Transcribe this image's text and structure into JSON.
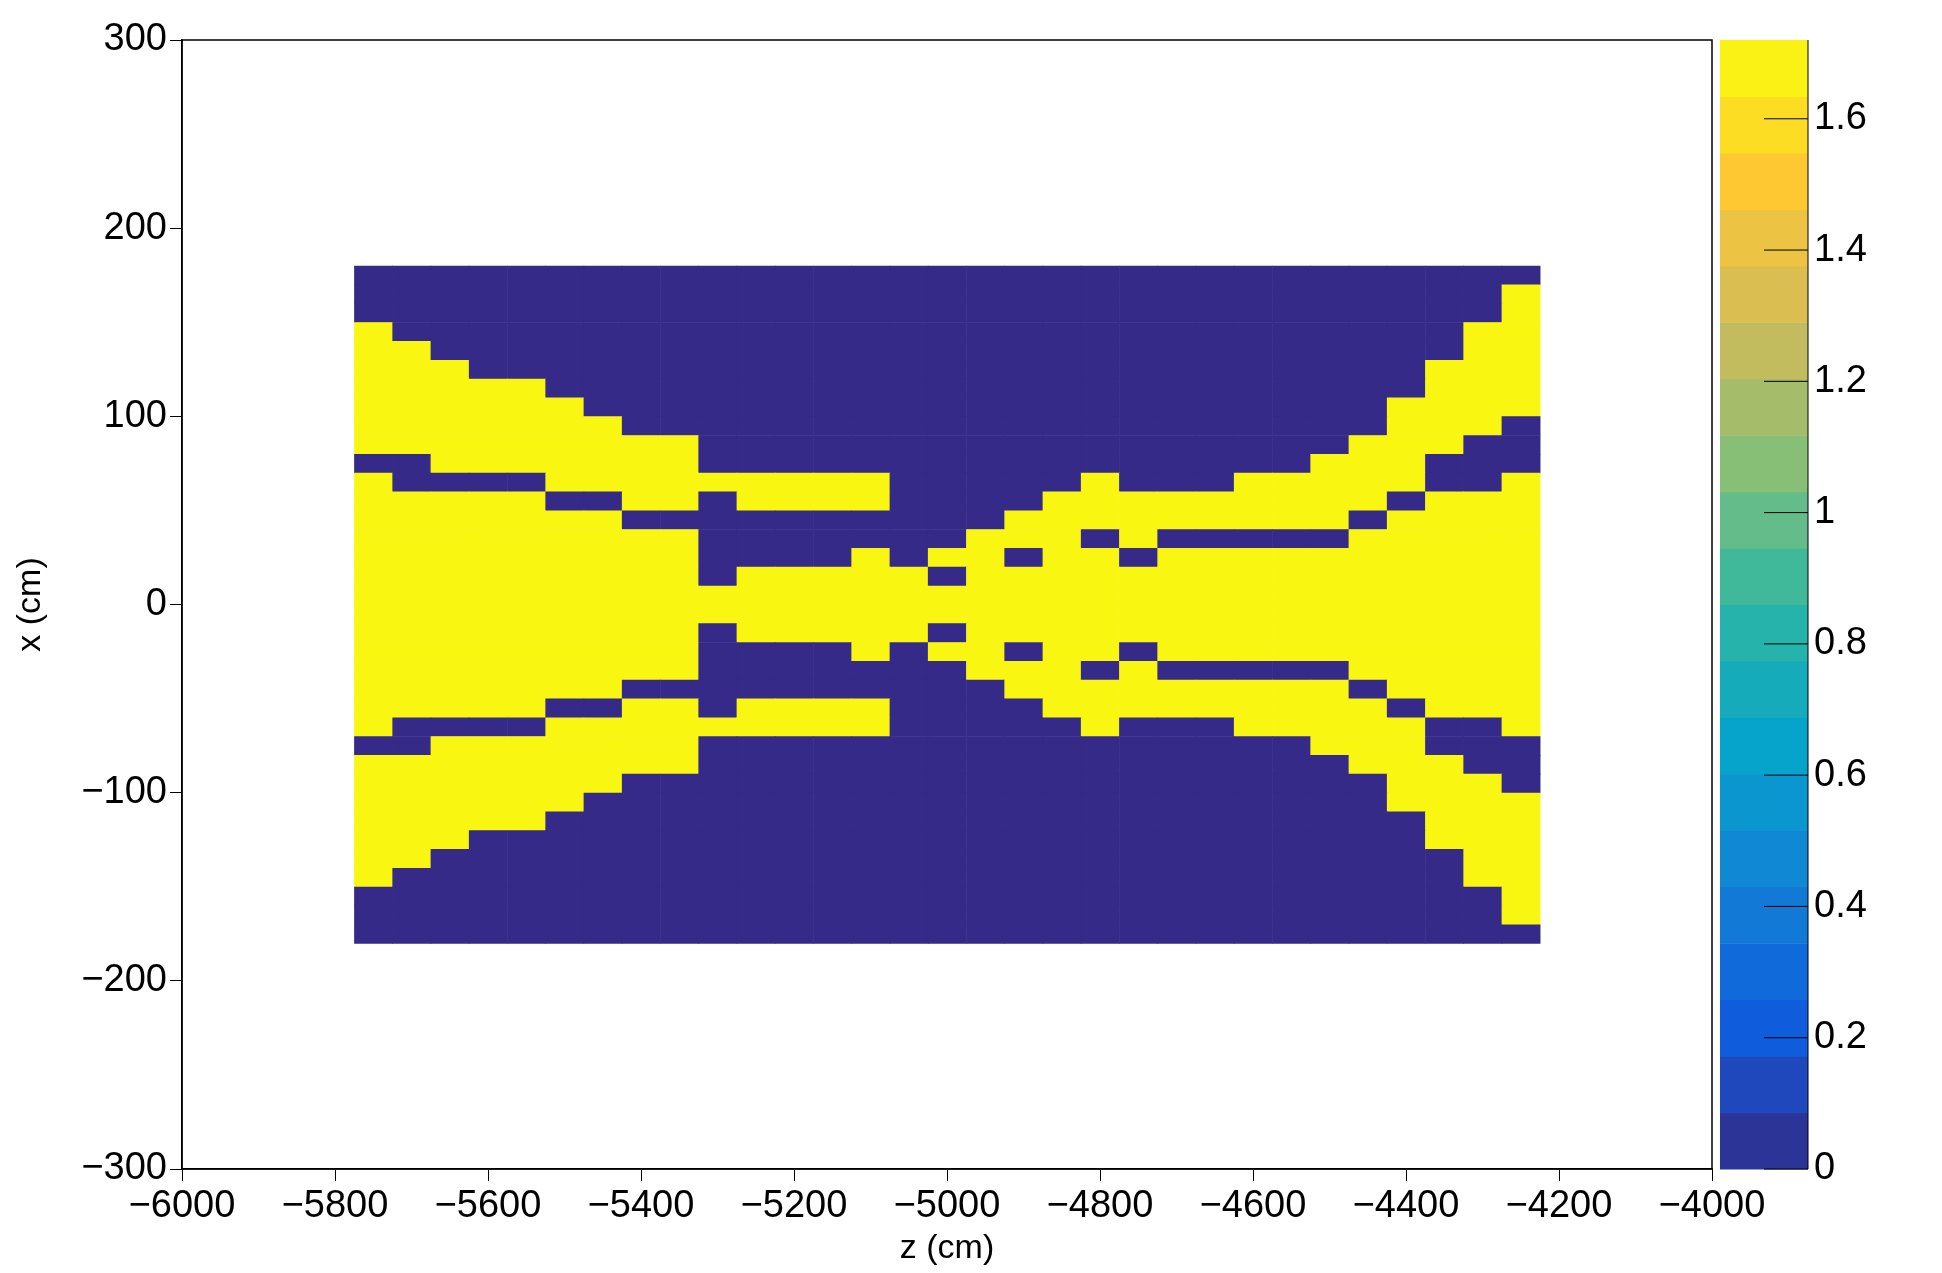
{
  "chart_data": {
    "type": "heatmap",
    "xlabel": "z (cm)",
    "ylabel": "x (cm)",
    "xlim": [
      -6000,
      -4000
    ],
    "xticks": [
      -6000,
      -5800,
      -5600,
      -5400,
      -5200,
      -5000,
      -4800,
      -4600,
      -4400,
      -4200,
      -4000
    ],
    "ylim": [
      -300,
      300
    ],
    "yticks": [
      -300,
      -200,
      -100,
      0,
      100,
      200,
      300
    ],
    "clim": [
      0,
      1.72
    ],
    "cticks": [
      0,
      0.2,
      0.4,
      0.6,
      0.8,
      1,
      1.2,
      1.4,
      1.6
    ],
    "x": [
      -5750,
      -5700,
      -5650,
      -5600,
      -5550,
      -5500,
      -5450,
      -5400,
      -5350,
      -5300,
      -5250,
      -5200,
      -5150,
      -5100,
      -5050,
      -5000,
      -4950,
      -4900,
      -4850,
      -4800,
      -4750,
      -4700,
      -4650,
      -4600,
      -4550,
      -4500,
      -4450,
      -4400,
      -4350,
      -4300,
      -4250
    ],
    "y": [
      175,
      165,
      155,
      145,
      135,
      125,
      115,
      105,
      95,
      85,
      75,
      65,
      55,
      45,
      35,
      25,
      15,
      5,
      -5,
      -15,
      -25,
      -35,
      -45,
      -55,
      -65,
      -75,
      -85,
      -95,
      -105,
      -115,
      -125,
      -135,
      -145,
      -155,
      -165,
      -175
    ],
    "cells": [
      [
        0,
        0,
        0,
        0,
        0,
        0,
        0,
        0,
        0,
        0,
        0,
        0,
        0,
        0,
        0,
        0,
        0,
        0,
        0,
        0,
        0,
        0,
        0,
        0,
        0,
        0,
        0,
        0,
        0,
        0,
        0
      ],
      [
        0,
        0,
        0,
        0,
        0,
        0,
        0,
        0,
        0,
        0,
        0,
        0,
        0,
        0,
        0,
        0,
        0,
        0,
        0,
        0,
        0,
        0,
        0,
        0,
        0,
        0,
        0,
        0,
        0,
        0,
        1.7
      ],
      [
        0,
        0,
        0,
        0,
        0,
        0,
        0,
        0,
        0,
        0,
        0,
        0,
        0,
        0,
        0,
        0,
        0,
        0,
        0,
        0,
        0,
        0,
        0,
        0,
        0,
        0,
        0,
        0,
        0,
        0,
        1.7
      ],
      [
        1.7,
        0,
        0,
        0,
        0,
        0,
        0,
        0,
        0,
        0,
        0,
        0,
        0,
        0,
        0,
        0,
        0,
        0,
        0,
        0,
        0,
        0,
        0,
        0,
        0,
        0,
        0,
        0,
        0,
        1.7,
        1.7
      ],
      [
        1.7,
        1.7,
        0,
        0,
        0,
        0,
        0,
        0,
        0,
        0,
        0,
        0,
        0,
        0,
        0,
        0,
        0,
        0,
        0,
        0,
        0,
        0,
        0,
        0,
        0,
        0,
        0,
        0,
        0,
        1.7,
        1.7
      ],
      [
        1.7,
        1.7,
        1.7,
        0,
        0,
        0,
        0,
        0,
        0,
        0,
        0,
        0,
        0,
        0,
        0,
        0,
        0,
        0,
        0,
        0,
        0,
        0,
        0,
        0,
        0,
        0,
        0,
        0,
        1.7,
        1.7,
        1.7
      ],
      [
        1.7,
        1.7,
        1.7,
        1.7,
        1.7,
        0,
        0,
        0,
        0,
        0,
        0,
        0,
        0,
        0,
        0,
        0,
        0,
        0,
        0,
        0,
        0,
        0,
        0,
        0,
        0,
        0,
        0,
        0,
        1.7,
        1.7,
        1.7
      ],
      [
        1.7,
        1.7,
        1.7,
        1.7,
        1.7,
        1.7,
        0,
        0,
        0,
        0,
        0,
        0,
        0,
        0,
        0,
        0,
        0,
        0,
        0,
        0,
        0,
        0,
        0,
        0,
        0,
        0,
        0,
        1.7,
        1.7,
        1.7,
        1.7
      ],
      [
        1.7,
        1.7,
        1.7,
        1.7,
        1.7,
        1.7,
        1.7,
        0,
        0,
        0,
        0,
        0,
        0,
        0,
        0,
        0,
        0,
        0,
        0,
        0,
        0,
        0,
        0,
        0,
        0,
        0,
        0,
        1.7,
        1.7,
        1.7,
        0
      ],
      [
        1.7,
        1.7,
        1.7,
        1.7,
        1.7,
        1.7,
        1.7,
        1.7,
        1.7,
        0,
        0,
        0,
        0,
        0,
        0,
        0,
        0,
        0,
        0,
        0,
        0,
        0,
        0,
        0,
        0,
        0,
        1.7,
        1.7,
        1.7,
        0,
        0
      ],
      [
        0,
        0,
        1.7,
        1.7,
        1.7,
        1.7,
        1.7,
        1.7,
        1.7,
        0,
        0,
        0,
        0,
        0,
        0,
        0,
        0,
        0,
        0,
        0,
        0,
        0,
        0,
        0,
        0,
        1.7,
        1.7,
        1.7,
        0,
        0,
        0
      ],
      [
        1.7,
        0,
        0,
        0,
        0,
        1.7,
        1.7,
        1.7,
        1.7,
        1.7,
        1.7,
        1.7,
        1.7,
        1.7,
        0,
        0,
        0,
        0,
        0,
        1.7,
        0,
        0,
        0,
        1.7,
        1.7,
        1.7,
        1.7,
        1.7,
        0,
        0,
        1.7
      ],
      [
        1.7,
        1.7,
        1.7,
        1.7,
        1.7,
        0,
        0,
        1.7,
        1.7,
        0,
        1.7,
        1.7,
        1.7,
        1.7,
        0,
        0,
        0,
        0,
        1.7,
        1.7,
        1.7,
        1.7,
        1.7,
        1.7,
        1.7,
        1.7,
        1.7,
        0,
        1.7,
        1.7,
        1.7
      ],
      [
        1.7,
        1.7,
        1.7,
        1.7,
        1.7,
        1.7,
        1.7,
        0,
        0,
        0,
        0,
        0,
        0,
        0,
        0,
        0,
        0,
        1.7,
        1.7,
        1.7,
        1.7,
        1.7,
        1.7,
        1.7,
        1.7,
        1.7,
        0,
        1.7,
        1.7,
        1.7,
        1.7
      ],
      [
        1.7,
        1.7,
        1.7,
        1.7,
        1.7,
        1.7,
        1.7,
        1.7,
        1.7,
        0,
        0,
        0,
        0,
        0,
        0,
        0,
        1.7,
        1.7,
        1.7,
        0,
        1.7,
        0,
        0,
        0,
        0,
        0,
        1.7,
        1.7,
        1.7,
        1.7,
        1.7
      ],
      [
        1.7,
        1.7,
        1.7,
        1.7,
        1.7,
        1.7,
        1.7,
        1.7,
        1.7,
        0,
        0,
        0,
        0,
        1.7,
        0,
        1.7,
        1.7,
        0,
        1.7,
        1.7,
        0,
        1.7,
        1.7,
        1.7,
        1.7,
        1.7,
        1.7,
        1.7,
        1.7,
        1.7,
        1.7
      ],
      [
        1.7,
        1.7,
        1.7,
        1.7,
        1.7,
        1.7,
        1.7,
        1.7,
        1.7,
        0,
        1.7,
        1.7,
        1.7,
        1.7,
        1.7,
        0,
        1.7,
        1.7,
        1.7,
        1.7,
        1.7,
        1.7,
        1.7,
        1.7,
        1.7,
        1.7,
        1.7,
        1.7,
        1.7,
        1.7,
        1.7
      ],
      [
        1.7,
        1.7,
        1.7,
        1.7,
        1.7,
        1.7,
        1.7,
        1.7,
        1.7,
        1.7,
        1.7,
        1.7,
        1.7,
        1.7,
        1.7,
        1.7,
        1.7,
        1.7,
        1.7,
        1.7,
        1.7,
        1.7,
        1.7,
        1.7,
        1.7,
        1.7,
        1.7,
        1.7,
        1.7,
        1.7,
        1.7
      ],
      [
        1.7,
        1.7,
        1.7,
        1.7,
        1.7,
        1.7,
        1.7,
        1.7,
        1.7,
        1.7,
        1.7,
        1.7,
        1.7,
        1.7,
        1.7,
        1.7,
        1.7,
        1.7,
        1.7,
        1.7,
        1.7,
        1.7,
        1.7,
        1.7,
        1.7,
        1.7,
        1.7,
        1.7,
        1.7,
        1.7,
        1.7
      ],
      [
        1.7,
        1.7,
        1.7,
        1.7,
        1.7,
        1.7,
        1.7,
        1.7,
        1.7,
        0,
        1.7,
        1.7,
        1.7,
        1.7,
        1.7,
        0,
        1.7,
        1.7,
        1.7,
        1.7,
        1.7,
        1.7,
        1.7,
        1.7,
        1.7,
        1.7,
        1.7,
        1.7,
        1.7,
        1.7,
        1.7
      ],
      [
        1.7,
        1.7,
        1.7,
        1.7,
        1.7,
        1.7,
        1.7,
        1.7,
        1.7,
        0,
        0,
        0,
        0,
        1.7,
        0,
        1.7,
        1.7,
        0,
        1.7,
        1.7,
        0,
        1.7,
        1.7,
        1.7,
        1.7,
        1.7,
        1.7,
        1.7,
        1.7,
        1.7,
        1.7
      ],
      [
        1.7,
        1.7,
        1.7,
        1.7,
        1.7,
        1.7,
        1.7,
        1.7,
        1.7,
        0,
        0,
        0,
        0,
        0,
        0,
        0,
        1.7,
        1.7,
        1.7,
        0,
        1.7,
        0,
        0,
        0,
        0,
        0,
        1.7,
        1.7,
        1.7,
        1.7,
        1.7
      ],
      [
        1.7,
        1.7,
        1.7,
        1.7,
        1.7,
        1.7,
        1.7,
        0,
        0,
        0,
        0,
        0,
        0,
        0,
        0,
        0,
        0,
        1.7,
        1.7,
        1.7,
        1.7,
        1.7,
        1.7,
        1.7,
        1.7,
        1.7,
        0,
        1.7,
        1.7,
        1.7,
        1.7
      ],
      [
        1.7,
        1.7,
        1.7,
        1.7,
        1.7,
        0,
        0,
        1.7,
        1.7,
        0,
        1.7,
        1.7,
        1.7,
        1.7,
        0,
        0,
        0,
        0,
        1.7,
        1.7,
        1.7,
        1.7,
        1.7,
        1.7,
        1.7,
        1.7,
        1.7,
        0,
        1.7,
        1.7,
        1.7
      ],
      [
        1.7,
        0,
        0,
        0,
        0,
        1.7,
        1.7,
        1.7,
        1.7,
        1.7,
        1.7,
        1.7,
        1.7,
        1.7,
        0,
        0,
        0,
        0,
        0,
        1.7,
        0,
        0,
        0,
        1.7,
        1.7,
        1.7,
        1.7,
        1.7,
        0,
        0,
        1.7
      ],
      [
        0,
        0,
        1.7,
        1.7,
        1.7,
        1.7,
        1.7,
        1.7,
        1.7,
        0,
        0,
        0,
        0,
        0,
        0,
        0,
        0,
        0,
        0,
        0,
        0,
        0,
        0,
        0,
        0,
        1.7,
        1.7,
        1.7,
        0,
        0,
        0
      ],
      [
        1.7,
        1.7,
        1.7,
        1.7,
        1.7,
        1.7,
        1.7,
        1.7,
        1.7,
        0,
        0,
        0,
        0,
        0,
        0,
        0,
        0,
        0,
        0,
        0,
        0,
        0,
        0,
        0,
        0,
        0,
        1.7,
        1.7,
        1.7,
        0,
        0
      ],
      [
        1.7,
        1.7,
        1.7,
        1.7,
        1.7,
        1.7,
        1.7,
        0,
        0,
        0,
        0,
        0,
        0,
        0,
        0,
        0,
        0,
        0,
        0,
        0,
        0,
        0,
        0,
        0,
        0,
        0,
        0,
        1.7,
        1.7,
        1.7,
        0
      ],
      [
        1.7,
        1.7,
        1.7,
        1.7,
        1.7,
        1.7,
        0,
        0,
        0,
        0,
        0,
        0,
        0,
        0,
        0,
        0,
        0,
        0,
        0,
        0,
        0,
        0,
        0,
        0,
        0,
        0,
        0,
        1.7,
        1.7,
        1.7,
        1.7
      ],
      [
        1.7,
        1.7,
        1.7,
        1.7,
        1.7,
        0,
        0,
        0,
        0,
        0,
        0,
        0,
        0,
        0,
        0,
        0,
        0,
        0,
        0,
        0,
        0,
        0,
        0,
        0,
        0,
        0,
        0,
        0,
        1.7,
        1.7,
        1.7
      ],
      [
        1.7,
        1.7,
        1.7,
        0,
        0,
        0,
        0,
        0,
        0,
        0,
        0,
        0,
        0,
        0,
        0,
        0,
        0,
        0,
        0,
        0,
        0,
        0,
        0,
        0,
        0,
        0,
        0,
        0,
        1.7,
        1.7,
        1.7
      ],
      [
        1.7,
        1.7,
        0,
        0,
        0,
        0,
        0,
        0,
        0,
        0,
        0,
        0,
        0,
        0,
        0,
        0,
        0,
        0,
        0,
        0,
        0,
        0,
        0,
        0,
        0,
        0,
        0,
        0,
        0,
        1.7,
        1.7
      ],
      [
        1.7,
        0,
        0,
        0,
        0,
        0,
        0,
        0,
        0,
        0,
        0,
        0,
        0,
        0,
        0,
        0,
        0,
        0,
        0,
        0,
        0,
        0,
        0,
        0,
        0,
        0,
        0,
        0,
        0,
        1.7,
        1.7
      ],
      [
        0,
        0,
        0,
        0,
        0,
        0,
        0,
        0,
        0,
        0,
        0,
        0,
        0,
        0,
        0,
        0,
        0,
        0,
        0,
        0,
        0,
        0,
        0,
        0,
        0,
        0,
        0,
        0,
        0,
        0,
        1.7
      ],
      [
        0,
        0,
        0,
        0,
        0,
        0,
        0,
        0,
        0,
        0,
        0,
        0,
        0,
        0,
        0,
        0,
        0,
        0,
        0,
        0,
        0,
        0,
        0,
        0,
        0,
        0,
        0,
        0,
        0,
        0,
        1.7
      ],
      [
        0,
        0,
        0,
        0,
        0,
        0,
        0,
        0,
        0,
        0,
        0,
        0,
        0,
        0,
        0,
        0,
        0,
        0,
        0,
        0,
        0,
        0,
        0,
        0,
        0,
        0,
        0,
        0,
        0,
        0,
        0
      ]
    ]
  }
}
